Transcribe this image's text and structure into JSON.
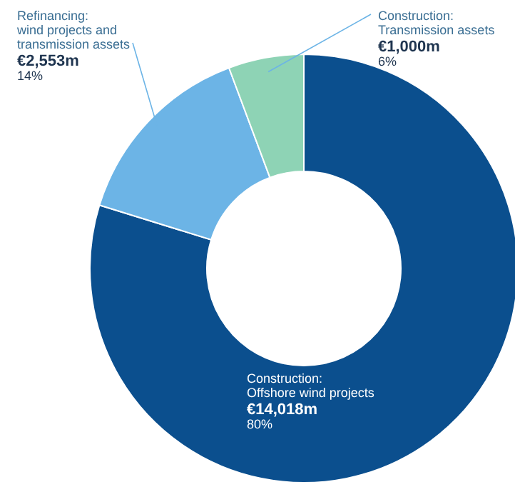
{
  "chart_data": {
    "type": "donut",
    "categories": [
      "Construction:\nOffshore wind projects",
      "Refinancing:\nwind projects and\ntransmission assets",
      "Construction:\nTransmission assets"
    ],
    "values": [
      14018,
      2553,
      1000
    ],
    "colors": [
      "#0b4f8e",
      "#6cb4e6",
      "#8ed3b5"
    ],
    "value_labels": [
      "€14,018m",
      "€2,553m",
      "€1,000m"
    ],
    "annotations": [
      "80%",
      "14%",
      "6%"
    ]
  }
}
